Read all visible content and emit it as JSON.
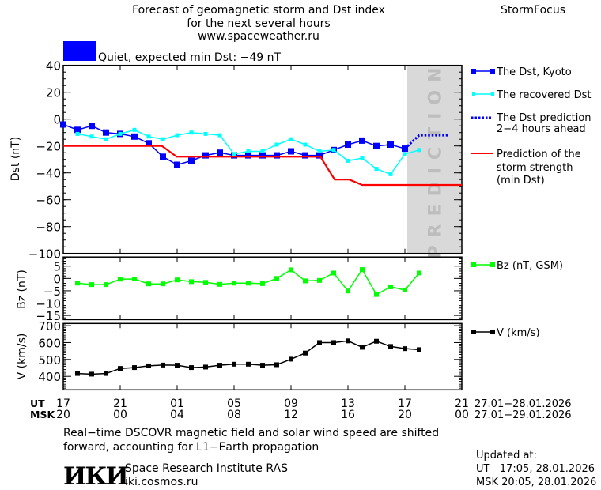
{
  "header": {
    "title_line1": "Forecast of geomagnetic storm and Dst index",
    "title_line2": "for the next several hours",
    "title_line3": "www.spaceweather.ru",
    "brand": "StormFocus"
  },
  "status": {
    "color": "#0000ff",
    "text": "Quiet, expected min Dst: −49 nT"
  },
  "prediction_band": {
    "label": "PREDICTION",
    "start": "28.01 17:10",
    "color": "#d9d9d9"
  },
  "x_axis": {
    "ut_label": "UT",
    "msk_label": "MSK",
    "ut_ticks": [
      "17",
      "21",
      "01",
      "05",
      "09",
      "13",
      "17",
      "21"
    ],
    "msk_ticks": [
      "20",
      "00",
      "04",
      "08",
      "12",
      "16",
      "20",
      "00"
    ],
    "ut_range": "27.01−28.01.2026",
    "msk_range": "27.01−29.01.2026",
    "start": "27.01 17:00",
    "end": "28.01 21:00"
  },
  "chart_data": [
    {
      "type": "line",
      "ylabel": "Dst (nT)",
      "ylim": [
        -100,
        40
      ],
      "yticks": [
        40,
        20,
        0,
        -20,
        -40,
        -60,
        -80,
        -100
      ],
      "series": [
        {
          "name": "The Dst, Kyoto",
          "color": "#0000ff",
          "marker": "square",
          "start": "27.01 17:00",
          "step_hours": 1,
          "values": [
            -4,
            -8,
            -5,
            -10,
            -11,
            -13,
            -18,
            -28,
            -34,
            -31,
            -27,
            -25,
            -27,
            -27,
            -27,
            -27,
            -24,
            -27,
            -27,
            -23,
            -19,
            -16,
            -20,
            -19,
            -22
          ]
        },
        {
          "name": "The recovered Dst",
          "color": "#00ffff",
          "marker": "square",
          "start": "27.01 18:00",
          "step_hours": 1,
          "values": [
            -11,
            -13,
            -15,
            -11,
            -8,
            -13,
            -15,
            -12,
            -10,
            -11,
            -12,
            -26,
            -24,
            -24,
            -19,
            -15,
            -19,
            -24,
            -23,
            -31,
            -29,
            -37,
            -41,
            -26,
            -23
          ]
        },
        {
          "name": "The Dst prediction",
          "name_line2": "2−4 hours ahead",
          "color": "#0000ff",
          "style": "dotted",
          "points": [
            [
              "28.01 17:00",
              -22
            ],
            [
              "28.01 18:00",
              -12
            ],
            [
              "28.01 20:05",
              -12
            ]
          ]
        },
        {
          "name": "Prediction of the",
          "name_line2": "storm strength",
          "name_line3": "(min Dst)",
          "color": "#ff0000",
          "style": "step",
          "points": [
            [
              "27.01 17:00",
              -20
            ],
            [
              "27.01 23:56",
              -20
            ],
            [
              "28.01 00:58",
              -28
            ],
            [
              "28.01 11:04",
              -28
            ],
            [
              "28.01 12:04",
              -45
            ],
            [
              "28.01 13:06",
              -45
            ],
            [
              "28.01 14:00",
              -49
            ],
            [
              "28.01 21:00",
              -49
            ]
          ]
        }
      ]
    },
    {
      "type": "line",
      "ylabel": "Bz (nT)",
      "ylim": [
        -16.7,
        8.7
      ],
      "yticks": [
        5,
        0,
        -5,
        -10,
        -15
      ],
      "series": [
        {
          "name": "Bz (nT, GSM)",
          "color": "#00ff00",
          "marker": "square",
          "start": "27.01 18:00",
          "step_hours": 1,
          "values": [
            -1.9,
            -2.5,
            -2.5,
            -0.3,
            -0.2,
            -2.2,
            -2.2,
            -0.6,
            -1.3,
            -1.6,
            -2.4,
            -1.9,
            -1.9,
            -2.1,
            0,
            3.5,
            -1,
            -0.8,
            2.2,
            -5.1,
            3.6,
            -6.5,
            -3.4,
            -4.7,
            2.2
          ]
        }
      ]
    },
    {
      "type": "line",
      "ylabel": "V (km/s)",
      "ylim": [
        320,
        713
      ],
      "yticks": [
        700,
        600,
        500,
        400
      ],
      "series": [
        {
          "name": "V (km/s)",
          "color": "#000000",
          "marker": "square",
          "start": "27.01 18:00",
          "step_hours": 1,
          "values": [
            417,
            413,
            417,
            447,
            452,
            462,
            467,
            466,
            452,
            455,
            466,
            472,
            472,
            466,
            469,
            502,
            538,
            600,
            600,
            610,
            572,
            608,
            577,
            564,
            558
          ]
        }
      ]
    }
  ],
  "footer": {
    "note_line1": "Real−time DSCOVR magnetic field and solar wind speed are shifted",
    "note_line2": "forward, accounting for L1−Earth propagation",
    "logo": "ИКИ",
    "institute": "Space Research Institute RAS",
    "website": "iki.cosmos.ru",
    "updated_label": "Updated at:",
    "updated_ut": "UT   17:05, 28.01.2026",
    "updated_msk": "MSK 20:05, 28.01.2026"
  }
}
